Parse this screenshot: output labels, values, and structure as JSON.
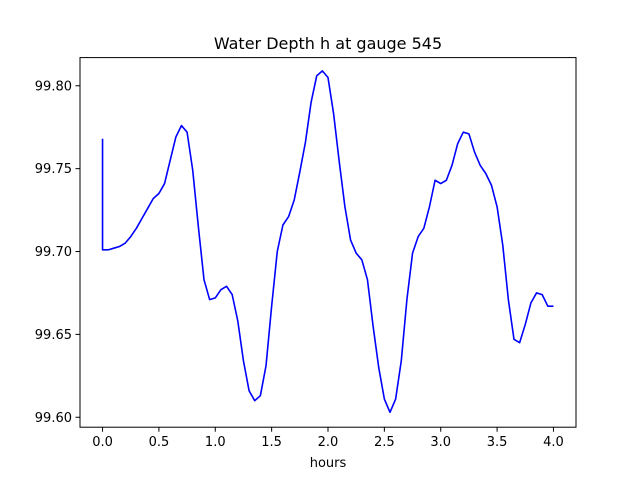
{
  "chart_data": {
    "type": "line",
    "title": "Water Depth h at gauge 545",
    "xlabel": "hours",
    "ylabel": "",
    "xlim": [
      -0.2,
      4.2
    ],
    "ylim": [
      99.594,
      99.817
    ],
    "xticks": [
      0.0,
      0.5,
      1.0,
      1.5,
      2.0,
      2.5,
      3.0,
      3.5,
      4.0
    ],
    "xtick_labels": [
      "0.0",
      "0.5",
      "1.0",
      "1.5",
      "2.0",
      "2.5",
      "3.0",
      "3.5",
      "4.0"
    ],
    "yticks": [
      99.6,
      99.65,
      99.7,
      99.75,
      99.8
    ],
    "ytick_labels": [
      "99.60",
      "99.65",
      "99.70",
      "99.75",
      "99.80"
    ],
    "grid": false,
    "legend": "none",
    "colors": {
      "line": "#0000ff",
      "axes": "#000000",
      "background": "#ffffff"
    },
    "series": [
      {
        "name": "",
        "x": [
          0.0,
          0.0,
          0.05,
          0.1,
          0.15,
          0.2,
          0.25,
          0.3,
          0.35,
          0.4,
          0.45,
          0.5,
          0.55,
          0.6,
          0.65,
          0.7,
          0.75,
          0.8,
          0.85,
          0.9,
          0.95,
          1.0,
          1.05,
          1.1,
          1.15,
          1.2,
          1.25,
          1.3,
          1.35,
          1.4,
          1.45,
          1.5,
          1.55,
          1.6,
          1.65,
          1.7,
          1.75,
          1.8,
          1.85,
          1.9,
          1.95,
          2.0,
          2.05,
          2.1,
          2.15,
          2.2,
          2.25,
          2.3,
          2.35,
          2.4,
          2.45,
          2.5,
          2.55,
          2.6,
          2.65,
          2.7,
          2.75,
          2.8,
          2.85,
          2.9,
          2.95,
          3.0,
          3.05,
          3.1,
          3.15,
          3.2,
          3.25,
          3.3,
          3.35,
          3.4,
          3.45,
          3.5,
          3.55,
          3.6,
          3.65,
          3.7,
          3.75,
          3.8,
          3.85,
          3.9,
          3.95,
          4.0
        ],
        "y": [
          99.768,
          99.701,
          99.701,
          99.702,
          99.703,
          99.705,
          99.709,
          99.714,
          99.72,
          99.726,
          99.732,
          99.735,
          99.741,
          99.755,
          99.769,
          99.776,
          99.772,
          99.749,
          99.715,
          99.683,
          99.671,
          99.672,
          99.677,
          99.679,
          99.674,
          99.658,
          99.634,
          99.616,
          99.61,
          99.613,
          99.631,
          99.667,
          99.7,
          99.716,
          99.721,
          99.731,
          99.748,
          99.766,
          99.79,
          99.806,
          99.809,
          99.805,
          99.783,
          99.754,
          99.727,
          99.707,
          99.699,
          99.695,
          99.683,
          99.655,
          99.63,
          99.611,
          99.603,
          99.611,
          99.634,
          99.671,
          99.699,
          99.709,
          99.714,
          99.727,
          99.743,
          99.741,
          99.743,
          99.752,
          99.765,
          99.772,
          99.771,
          99.76,
          99.752,
          99.747,
          99.74,
          99.727,
          99.704,
          99.671,
          99.647,
          99.645,
          99.656,
          99.669,
          99.675,
          99.674,
          99.667,
          99.667
        ]
      }
    ]
  }
}
